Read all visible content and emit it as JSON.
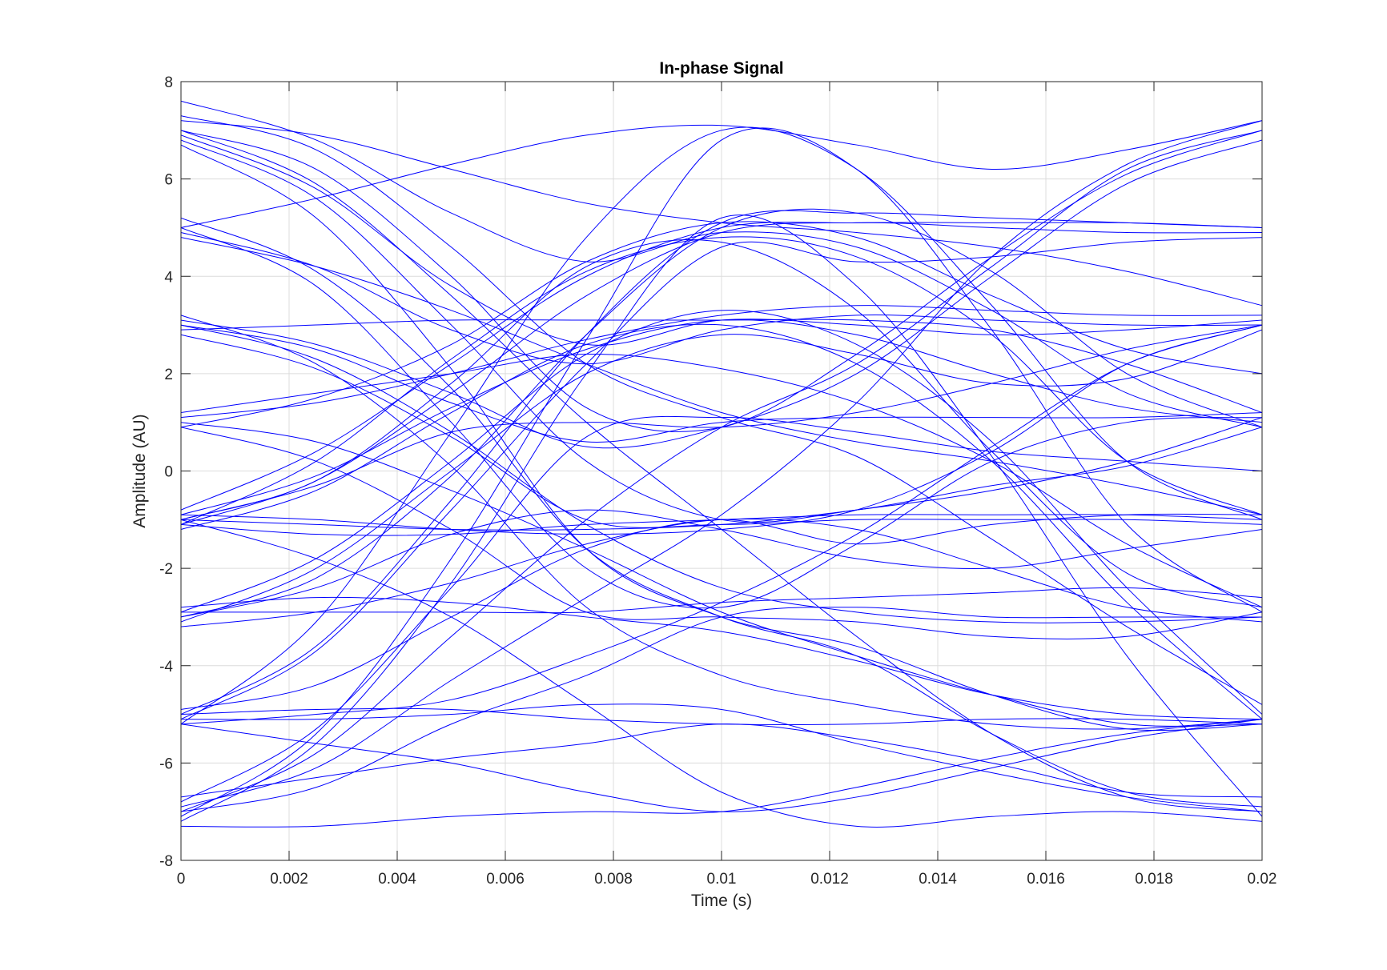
{
  "chart_data": {
    "type": "line",
    "title": "In-phase Signal",
    "xlabel": "Time (s)",
    "ylabel": "Amplitude (AU)",
    "xlim": [
      0,
      0.02
    ],
    "ylim": [
      -8,
      8
    ],
    "grid": true,
    "legend": "none",
    "line_color": "#0000ff",
    "x_ticks": [
      0,
      0.002,
      0.004,
      0.006,
      0.008,
      0.01,
      0.012,
      0.014,
      0.016,
      0.018,
      0.02
    ],
    "x_tick_labels": [
      "0",
      "0.002",
      "0.004",
      "0.006",
      "0.008",
      "0.01",
      "0.012",
      "0.014",
      "0.016",
      "0.018",
      "0.02"
    ],
    "y_ticks": [
      -8,
      -6,
      -4,
      -2,
      0,
      2,
      4,
      6,
      8
    ],
    "y_tick_labels": [
      "-8",
      "-6",
      "-4",
      "-2",
      "0",
      "2",
      "4",
      "6",
      "8"
    ],
    "x": [
      0,
      0.0025,
      0.005,
      0.0075,
      0.01,
      0.0125,
      0.015,
      0.0175,
      0.02
    ],
    "series": [
      {
        "values": [
          7.0,
          6.2,
          4.0,
          1.3,
          0.9,
          2.4,
          4.4,
          6.1,
          7.0
        ]
      },
      {
        "values": [
          7.3,
          6.6,
          4.6,
          2.2,
          1.1,
          0.3,
          -1.4,
          -3.2,
          -4.8
        ]
      },
      {
        "values": [
          6.8,
          5.6,
          3.0,
          0.2,
          -1.0,
          -0.8,
          -0.3,
          0.1,
          0.9
        ]
      },
      {
        "values": [
          7.2,
          6.9,
          6.2,
          5.5,
          5.1,
          4.9,
          4.6,
          4.1,
          3.4
        ]
      },
      {
        "values": [
          6.7,
          5.2,
          2.1,
          -1.6,
          -3.0,
          -3.6,
          -4.6,
          -5.3,
          -5.2
        ]
      },
      {
        "values": [
          7.0,
          5.9,
          3.6,
          1.0,
          -1.2,
          -3.4,
          -5.4,
          -6.7,
          -7.0
        ]
      },
      {
        "values": [
          6.9,
          5.8,
          3.8,
          2.6,
          3.1,
          3.0,
          2.8,
          2.9,
          3.1
        ]
      },
      {
        "values": [
          7.6,
          6.8,
          5.3,
          4.3,
          4.9,
          4.6,
          3.3,
          1.6,
          0.9
        ]
      },
      {
        "values": [
          5.2,
          4.1,
          1.7,
          -1.6,
          -3.0,
          -3.8,
          -5.4,
          -6.6,
          -6.9
        ]
      },
      {
        "values": [
          5.0,
          3.8,
          1.0,
          -2.0,
          -2.8,
          -1.5,
          0.2,
          1.0,
          1.1
        ]
      },
      {
        "values": [
          4.9,
          4.2,
          2.9,
          2.2,
          2.9,
          3.2,
          3.1,
          3.0,
          3.0
        ]
      },
      {
        "values": [
          4.8,
          4.2,
          3.3,
          2.2,
          1.2,
          0.6,
          0.2,
          -0.3,
          -0.9
        ]
      },
      {
        "values": [
          5.0,
          5.6,
          6.3,
          6.9,
          7.1,
          6.7,
          6.2,
          6.6,
          7.2
        ]
      },
      {
        "values": [
          3.1,
          2.6,
          1.6,
          0.5,
          0.9,
          2.0,
          4.0,
          5.9,
          6.8
        ]
      },
      {
        "values": [
          3.0,
          2.5,
          1.4,
          0.6,
          1.0,
          1.1,
          1.1,
          1.1,
          1.2
        ]
      },
      {
        "values": [
          3.2,
          2.2,
          0.1,
          -2.8,
          -4.2,
          -4.8,
          -5.2,
          -5.3,
          -5.1
        ]
      },
      {
        "values": [
          2.9,
          3.0,
          3.1,
          3.1,
          3.1,
          3.1,
          2.9,
          2.2,
          1.2
        ]
      },
      {
        "values": [
          3.0,
          2.3,
          0.8,
          -1.1,
          -2.4,
          -2.9,
          -3.1,
          -3.1,
          -3.0
        ]
      },
      {
        "values": [
          2.8,
          2.1,
          0.7,
          -1.0,
          -1.1,
          -1.0,
          -1.0,
          -1.0,
          -1.1
        ]
      },
      {
        "values": [
          1.1,
          1.4,
          2.0,
          2.7,
          3.2,
          3.4,
          3.3,
          3.2,
          3.2
        ]
      },
      {
        "values": [
          1.0,
          0.6,
          -0.4,
          -1.6,
          -2.9,
          -3.8,
          -4.6,
          -5.2,
          -5.2
        ]
      },
      {
        "values": [
          0.9,
          0.2,
          -1.2,
          -2.9,
          -3.0,
          -3.1,
          -3.4,
          -3.4,
          -2.9
        ]
      },
      {
        "values": [
          -0.8,
          0.4,
          2.2,
          4.0,
          5.0,
          5.1,
          5.1,
          5.1,
          5.0
        ]
      },
      {
        "values": [
          -1.0,
          -0.2,
          1.8,
          4.2,
          4.7,
          3.3,
          0.4,
          -2.1,
          -2.8
        ]
      },
      {
        "values": [
          -1.1,
          0.2,
          2.3,
          4.1,
          4.8,
          4.4,
          2.8,
          0.2,
          -0.9
        ]
      },
      {
        "values": [
          -0.9,
          -0.1,
          1.3,
          2.5,
          3.1,
          2.8,
          2.0,
          1.3,
          1.0
        ]
      },
      {
        "values": [
          -1.2,
          -0.4,
          1.2,
          2.6,
          3.0,
          2.2,
          0.2,
          -2.7,
          -5.1
        ]
      },
      {
        "values": [
          -1.0,
          -1.1,
          -1.2,
          -1.2,
          -1.1,
          -0.8,
          -0.4,
          0.2,
          1.1
        ]
      },
      {
        "values": [
          -0.9,
          -1.0,
          -1.2,
          -1.3,
          -1.2,
          -0.8,
          0.4,
          2.2,
          3.0
        ]
      },
      {
        "values": [
          -1.1,
          -1.3,
          -1.3,
          -1.1,
          -1.0,
          -0.9,
          -0.9,
          -0.9,
          -1.0
        ]
      },
      {
        "values": [
          -1.0,
          -1.8,
          -3.0,
          -4.8,
          -6.6,
          -7.3,
          -7.1,
          -7.0,
          -7.2
        ]
      },
      {
        "values": [
          -1.1,
          -0.2,
          1.6,
          3.6,
          4.9,
          5.1,
          5.0,
          4.9,
          4.9
        ]
      },
      {
        "values": [
          -2.9,
          -1.8,
          0.2,
          2.4,
          3.3,
          2.6,
          0.6,
          -2.4,
          -5.0
        ]
      },
      {
        "values": [
          -3.1,
          -2.0,
          0.0,
          2.0,
          2.8,
          2.4,
          1.8,
          1.9,
          2.9
        ]
      },
      {
        "values": [
          -3.0,
          -2.4,
          -1.3,
          -0.8,
          -1.2,
          -1.8,
          -2.0,
          -1.6,
          -1.2
        ]
      },
      {
        "values": [
          -2.9,
          -2.9,
          -2.9,
          -2.9,
          -2.7,
          -2.6,
          -2.5,
          -2.4,
          -2.6
        ]
      },
      {
        "values": [
          -3.2,
          -2.9,
          -2.3,
          -1.5,
          -1.0,
          -1.2,
          -2.0,
          -2.8,
          -3.1
        ]
      },
      {
        "values": [
          -2.8,
          -2.6,
          -2.7,
          -3.0,
          -3.3,
          -3.9,
          -4.6,
          -5.0,
          -5.1
        ]
      },
      {
        "values": [
          -3.0,
          -2.2,
          -0.1,
          2.8,
          5.0,
          5.3,
          4.1,
          2.0,
          0.9
        ]
      },
      {
        "values": [
          -5.0,
          -3.6,
          -0.6,
          2.8,
          5.1,
          5.3,
          5.2,
          5.1,
          5.0
        ]
      },
      {
        "values": [
          -5.2,
          -3.1,
          0.8,
          4.8,
          7.0,
          6.2,
          3.4,
          0.2,
          -1.0
        ]
      },
      {
        "values": [
          -5.1,
          -3.7,
          -0.8,
          2.2,
          4.6,
          4.3,
          4.4,
          4.7,
          4.8
        ]
      },
      {
        "values": [
          -4.9,
          -4.4,
          -3.0,
          -1.6,
          -1.0,
          -1.5,
          -1.1,
          -0.9,
          -0.9
        ]
      },
      {
        "values": [
          -5.0,
          -4.9,
          -4.9,
          -5.1,
          -5.2,
          -5.2,
          -5.1,
          -5.1,
          -5.2
        ]
      },
      {
        "values": [
          -5.1,
          -5.1,
          -5.0,
          -4.8,
          -4.9,
          -5.6,
          -6.2,
          -6.7,
          -7.0
        ]
      },
      {
        "values": [
          -5.2,
          -5.0,
          -4.7,
          -3.8,
          -2.7,
          -1.3,
          0.5,
          2.2,
          3.0
        ]
      },
      {
        "values": [
          -5.2,
          -5.6,
          -6.0,
          -6.6,
          -7.0,
          -6.7,
          -6.1,
          -5.5,
          -5.1
        ]
      },
      {
        "values": [
          -7.1,
          -5.4,
          -1.8,
          2.7,
          6.8,
          6.2,
          2.9,
          -1.1,
          -2.9
        ]
      },
      {
        "values": [
          -7.2,
          -5.6,
          -2.3,
          2.0,
          5.2,
          3.8,
          0.3,
          -3.8,
          -7.1
        ]
      },
      {
        "values": [
          -7.0,
          -5.8,
          -3.4,
          -1.0,
          0.9,
          2.2,
          4.2,
          6.2,
          7.0
        ]
      },
      {
        "values": [
          -6.8,
          -5.3,
          -2.4,
          0.7,
          1.1,
          0.8,
          0.4,
          0.2,
          0.0
        ]
      },
      {
        "values": [
          -7.3,
          -7.3,
          -7.1,
          -7.0,
          -7.0,
          -6.5,
          -5.9,
          -5.4,
          -5.1
        ]
      },
      {
        "values": [
          -6.9,
          -6.1,
          -4.3,
          -2.6,
          -0.9,
          1.4,
          4.4,
          6.3,
          7.2
        ]
      },
      {
        "values": [
          -7.0,
          -6.5,
          -5.2,
          -4.2,
          -3.0,
          -2.8,
          -3.0,
          -3.0,
          -3.0
        ]
      },
      {
        "values": [
          -6.7,
          -6.3,
          -5.9,
          -5.6,
          -5.2,
          -5.5,
          -6.0,
          -6.6,
          -6.7
        ]
      },
      {
        "values": [
          0.9,
          1.5,
          2.6,
          4.3,
          5.1,
          4.8,
          3.6,
          2.5,
          2.0
        ]
      },
      {
        "values": [
          1.2,
          1.6,
          2.0,
          2.4,
          2.1,
          1.4,
          0.2,
          -1.5,
          -2.8
        ]
      },
      {
        "values": [
          -1.0,
          -0.3,
          0.8,
          1.0,
          0.9,
          1.2,
          1.8,
          2.5,
          3.0
        ]
      }
    ]
  }
}
